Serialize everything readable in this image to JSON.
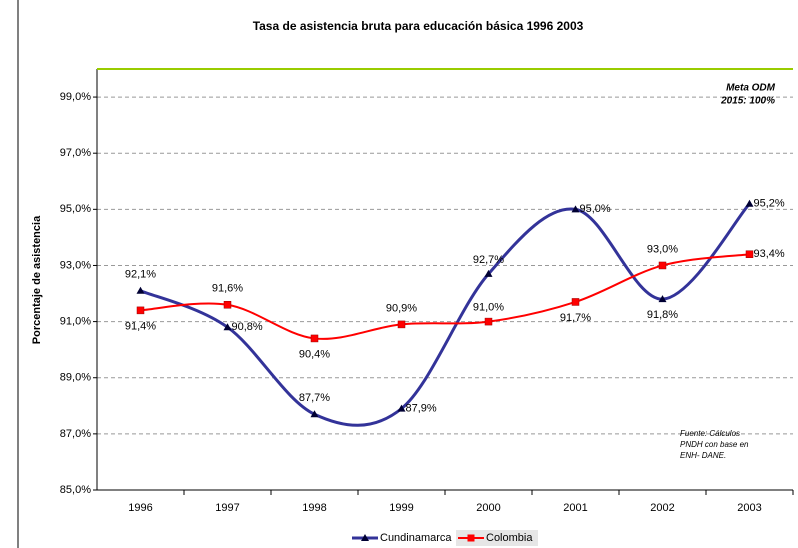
{
  "chart_data": {
    "type": "line",
    "title": "Tasa de asistencia bruta para educación básica  1996 2003",
    "y_label": "Porcentaje de asistencia",
    "categories": [
      "1996",
      "1997",
      "1998",
      "1999",
      "2000",
      "2001",
      "2002",
      "2003"
    ],
    "series": [
      {
        "name": "Cundinamarca",
        "color": "#333399",
        "marker": "triangle",
        "values": [
          92.1,
          90.8,
          87.7,
          87.9,
          92.7,
          95.0,
          91.8,
          95.2
        ],
        "value_labels": [
          "92,1%",
          "90,8%",
          "87,7%",
          "87,9%",
          "92,7%",
          "95,0%",
          "91,8%",
          "95,2%"
        ]
      },
      {
        "name": "Colombia",
        "color": "#ff0000",
        "marker": "square",
        "values": [
          91.4,
          91.6,
          90.4,
          90.9,
          91.0,
          91.7,
          93.0,
          93.4
        ],
        "value_labels": [
          "91,4%",
          "91,6%",
          "90,4%",
          "90,9%",
          "91,0%",
          "91,7%",
          "93,0%",
          "93,4%"
        ]
      }
    ],
    "ylim": [
      85,
      100
    ],
    "yticks": [
      {
        "value": 85,
        "label": "85,0%"
      },
      {
        "value": 87,
        "label": "87,0%"
      },
      {
        "value": 89,
        "label": "89,0%"
      },
      {
        "value": 91,
        "label": "91,0%"
      },
      {
        "value": 93,
        "label": "93,0%"
      },
      {
        "value": 95,
        "label": "95,0%"
      },
      {
        "value": 97,
        "label": "97,0%"
      },
      {
        "value": 99,
        "label": "99,0%"
      }
    ],
    "grid": true,
    "target": {
      "value": 100,
      "color": "#99cc00",
      "label": [
        "Meta ODM",
        "2015: 100%"
      ]
    },
    "note": [
      "Fuente: Cálculos",
      "PNDH con base en",
      "ENH- DANE."
    ],
    "legend": "bottom"
  }
}
